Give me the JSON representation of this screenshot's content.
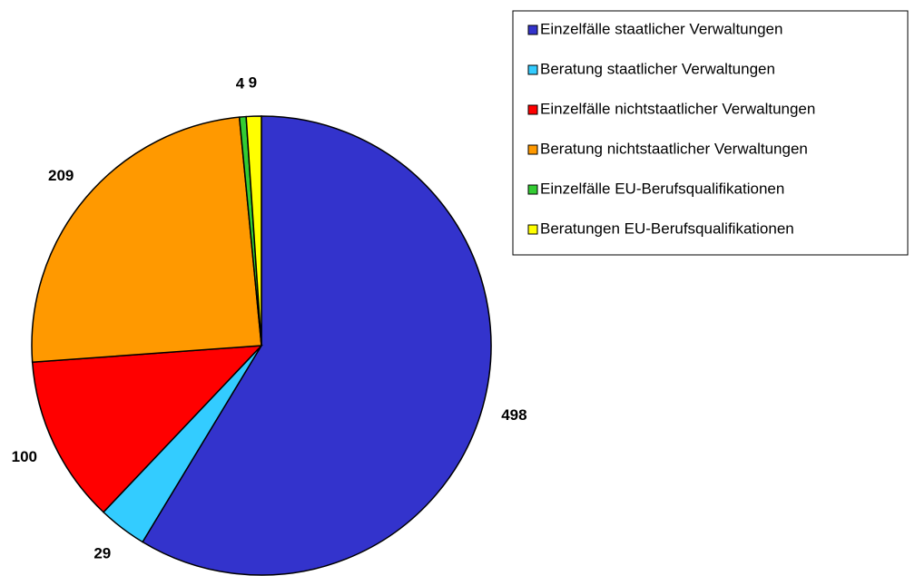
{
  "chart_data": {
    "type": "pie",
    "categories": [
      "Einzelfälle staatlicher Verwaltungen",
      "Beratung staatlicher Verwaltungen",
      "Einzelfälle nichtstaatlicher Verwaltungen",
      "Beratung nichtstaatlicher Verwaltungen",
      "Einzelfälle EU-Berufsqualifikationen",
      "Beratungen EU-Berufsqualifikationen"
    ],
    "values": [
      498,
      29,
      100,
      209,
      4,
      9
    ],
    "colors": [
      "#3333cc",
      "#33ccff",
      "#ff0000",
      "#ff9900",
      "#33cc33",
      "#ffff00"
    ]
  }
}
